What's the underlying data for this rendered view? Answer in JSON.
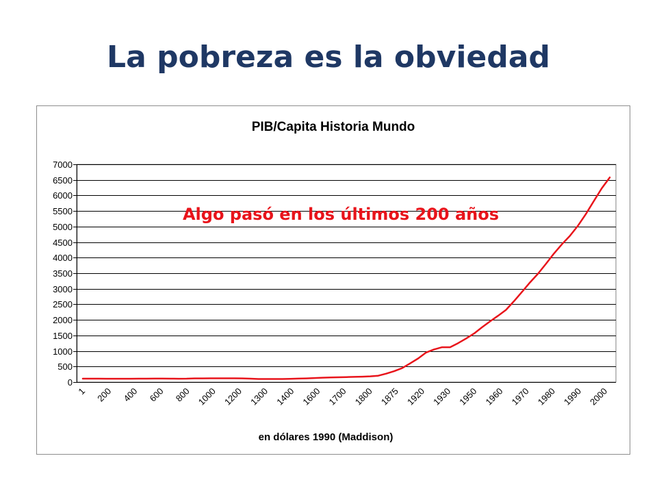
{
  "slide": {
    "title": "La pobreza es la obviedad"
  },
  "chart_data": {
    "type": "line",
    "title": "PIB/Capita Historia Mundo",
    "xlabel": "en dólares 1990 (Maddison)",
    "ylabel": "",
    "ylim": [
      0,
      7000
    ],
    "yticks": [
      0,
      500,
      1000,
      1500,
      2000,
      2500,
      3000,
      3500,
      4000,
      4500,
      5000,
      5500,
      6000,
      6500,
      7000
    ],
    "grid": true,
    "legend": "none",
    "annotation": "Algo pasó en los últimos 200 años",
    "x_tick_labels": [
      "1",
      "200",
      "400",
      "600",
      "800",
      "1000",
      "1200",
      "1300",
      "1400",
      "1600",
      "1700",
      "1800",
      "1875",
      "1920",
      "1930",
      "1950",
      "1960",
      "1970",
      "1980",
      "1990",
      "2000"
    ],
    "series": [
      {
        "color": "#e8141b",
        "values": [
          110,
          110,
          110,
          108,
          108,
          108,
          108,
          110,
          110,
          112,
          112,
          110,
          108,
          110,
          118,
          118,
          122,
          122,
          120,
          120,
          118,
          110,
          100,
          100,
          98,
          100,
          105,
          112,
          118,
          130,
          140,
          148,
          155,
          160,
          168,
          175,
          185,
          205,
          270,
          350,
          450,
          600,
          760,
          950,
          1050,
          1120,
          1120,
          1250,
          1400,
          1560,
          1760,
          1950,
          2130,
          2320,
          2600,
          2900,
          3200,
          3480,
          3800,
          4130,
          4430,
          4700,
          5020,
          5400,
          5820,
          6230,
          6580
        ]
      }
    ]
  }
}
